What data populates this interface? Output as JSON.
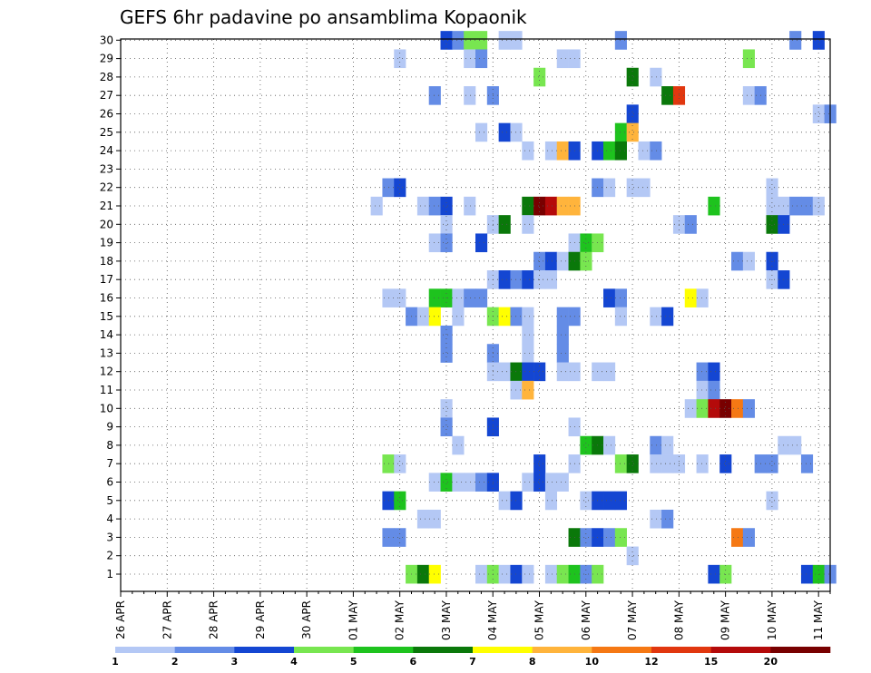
{
  "chart_data": {
    "type": "heatmap",
    "title": "GEFS 6hr padavine po ansamblima Kopaonik",
    "y_categories": [
      "1",
      "2",
      "3",
      "4",
      "5",
      "6",
      "7",
      "8",
      "9",
      "10",
      "11",
      "12",
      "13",
      "14",
      "15",
      "16",
      "17",
      "18",
      "19",
      "20",
      "21",
      "22",
      "23",
      "24",
      "25",
      "26",
      "27",
      "28",
      "29",
      "30"
    ],
    "x_tick_labels": [
      "26 APR",
      "27 APR",
      "28 APR",
      "29 APR",
      "30 APR",
      "01 MAY",
      "02 MAY",
      "03 MAY",
      "04 MAY",
      "05 MAY",
      "06 MAY",
      "07 MAY",
      "08 MAY",
      "09 MAY",
      "10 MAY",
      "11 MAY"
    ],
    "steps_per_day": 4,
    "total_steps": 61,
    "grid": true,
    "colorbar": {
      "boundaries": [
        "1",
        "2",
        "3",
        "4",
        "5",
        "6",
        "7",
        "8",
        "10",
        "12",
        "15",
        "20"
      ],
      "colors": [
        "#b4c8f5",
        "#648ce6",
        "#1446d2",
        "#78e650",
        "#1ec31e",
        "#0a780a",
        "#ffff00",
        "#ffb43c",
        "#f57814",
        "#e1370f",
        "#b40a0a",
        "#780000"
      ]
    },
    "cells": [
      {
        "m": 30,
        "t": 28,
        "c": 2
      },
      {
        "m": 30,
        "t": 29,
        "c": 1
      },
      {
        "m": 30,
        "t": 30,
        "c": 3
      },
      {
        "m": 30,
        "t": 31,
        "c": 3
      },
      {
        "m": 30,
        "t": 33,
        "c": 0
      },
      {
        "m": 30,
        "t": 34,
        "c": 0
      },
      {
        "m": 30,
        "t": 43,
        "c": 1
      },
      {
        "m": 30,
        "t": 58,
        "c": 1
      },
      {
        "m": 30,
        "t": 60,
        "c": 2
      },
      {
        "m": 29,
        "t": 24,
        "c": 0
      },
      {
        "m": 29,
        "t": 30,
        "c": 0
      },
      {
        "m": 29,
        "t": 31,
        "c": 1
      },
      {
        "m": 29,
        "t": 38,
        "c": 0
      },
      {
        "m": 29,
        "t": 39,
        "c": 0
      },
      {
        "m": 29,
        "t": 54,
        "c": 3
      },
      {
        "m": 28,
        "t": 36,
        "c": 3
      },
      {
        "m": 28,
        "t": 44,
        "c": 5
      },
      {
        "m": 28,
        "t": 46,
        "c": 0
      },
      {
        "m": 27,
        "t": 27,
        "c": 1
      },
      {
        "m": 27,
        "t": 30,
        "c": 0
      },
      {
        "m": 27,
        "t": 32,
        "c": 1
      },
      {
        "m": 27,
        "t": 47,
        "c": 5
      },
      {
        "m": 27,
        "t": 48,
        "c": 9
      },
      {
        "m": 27,
        "t": 54,
        "c": 0
      },
      {
        "m": 27,
        "t": 55,
        "c": 1
      },
      {
        "m": 26,
        "t": 44,
        "c": 2
      },
      {
        "m": 26,
        "t": 60,
        "c": 0
      },
      {
        "m": 26,
        "t": 61,
        "c": 1
      },
      {
        "m": 25,
        "t": 31,
        "c": 0
      },
      {
        "m": 25,
        "t": 33,
        "c": 2
      },
      {
        "m": 25,
        "t": 34,
        "c": 0
      },
      {
        "m": 25,
        "t": 43,
        "c": 4
      },
      {
        "m": 25,
        "t": 44,
        "c": 7
      },
      {
        "m": 24,
        "t": 35,
        "c": 0
      },
      {
        "m": 24,
        "t": 37,
        "c": 0
      },
      {
        "m": 24,
        "t": 38,
        "c": 7
      },
      {
        "m": 24,
        "t": 39,
        "c": 2
      },
      {
        "m": 24,
        "t": 41,
        "c": 2
      },
      {
        "m": 24,
        "t": 42,
        "c": 4
      },
      {
        "m": 24,
        "t": 43,
        "c": 5
      },
      {
        "m": 24,
        "t": 45,
        "c": 0
      },
      {
        "m": 24,
        "t": 46,
        "c": 1
      },
      {
        "m": 22,
        "t": 23,
        "c": 1
      },
      {
        "m": 22,
        "t": 24,
        "c": 2
      },
      {
        "m": 22,
        "t": 41,
        "c": 1
      },
      {
        "m": 22,
        "t": 42,
        "c": 0
      },
      {
        "m": 22,
        "t": 44,
        "c": 0
      },
      {
        "m": 22,
        "t": 45,
        "c": 0
      },
      {
        "m": 22,
        "t": 56,
        "c": 0
      },
      {
        "m": 21,
        "t": 22,
        "c": 0
      },
      {
        "m": 21,
        "t": 26,
        "c": 0
      },
      {
        "m": 21,
        "t": 27,
        "c": 1
      },
      {
        "m": 21,
        "t": 28,
        "c": 2
      },
      {
        "m": 21,
        "t": 30,
        "c": 0
      },
      {
        "m": 21,
        "t": 35,
        "c": 5
      },
      {
        "m": 21,
        "t": 36,
        "c": 11
      },
      {
        "m": 21,
        "t": 37,
        "c": 10
      },
      {
        "m": 21,
        "t": 38,
        "c": 7
      },
      {
        "m": 21,
        "t": 39,
        "c": 7
      },
      {
        "m": 21,
        "t": 51,
        "c": 4
      },
      {
        "m": 21,
        "t": 56,
        "c": 0
      },
      {
        "m": 21,
        "t": 57,
        "c": 0
      },
      {
        "m": 21,
        "t": 58,
        "c": 1
      },
      {
        "m": 21,
        "t": 59,
        "c": 1
      },
      {
        "m": 21,
        "t": 60,
        "c": 0
      },
      {
        "m": 20,
        "t": 28,
        "c": 0
      },
      {
        "m": 20,
        "t": 32,
        "c": 0
      },
      {
        "m": 20,
        "t": 33,
        "c": 5
      },
      {
        "m": 20,
        "t": 35,
        "c": 0
      },
      {
        "m": 20,
        "t": 48,
        "c": 0
      },
      {
        "m": 20,
        "t": 49,
        "c": 1
      },
      {
        "m": 20,
        "t": 56,
        "c": 5
      },
      {
        "m": 20,
        "t": 57,
        "c": 2
      },
      {
        "m": 19,
        "t": 27,
        "c": 0
      },
      {
        "m": 19,
        "t": 28,
        "c": 1
      },
      {
        "m": 19,
        "t": 31,
        "c": 2
      },
      {
        "m": 19,
        "t": 39,
        "c": 0
      },
      {
        "m": 19,
        "t": 40,
        "c": 4
      },
      {
        "m": 19,
        "t": 41,
        "c": 3
      },
      {
        "m": 18,
        "t": 36,
        "c": 1
      },
      {
        "m": 18,
        "t": 37,
        "c": 2
      },
      {
        "m": 18,
        "t": 38,
        "c": 0
      },
      {
        "m": 18,
        "t": 39,
        "c": 5
      },
      {
        "m": 18,
        "t": 40,
        "c": 3
      },
      {
        "m": 18,
        "t": 53,
        "c": 1
      },
      {
        "m": 18,
        "t": 54,
        "c": 0
      },
      {
        "m": 18,
        "t": 56,
        "c": 2
      },
      {
        "m": 17,
        "t": 32,
        "c": 0
      },
      {
        "m": 17,
        "t": 33,
        "c": 2
      },
      {
        "m": 17,
        "t": 34,
        "c": 1
      },
      {
        "m": 17,
        "t": 35,
        "c": 2
      },
      {
        "m": 17,
        "t": 36,
        "c": 0
      },
      {
        "m": 17,
        "t": 37,
        "c": 0
      },
      {
        "m": 17,
        "t": 56,
        "c": 0
      },
      {
        "m": 17,
        "t": 57,
        "c": 2
      },
      {
        "m": 16,
        "t": 23,
        "c": 0
      },
      {
        "m": 16,
        "t": 24,
        "c": 0
      },
      {
        "m": 16,
        "t": 27,
        "c": 4
      },
      {
        "m": 16,
        "t": 28,
        "c": 4
      },
      {
        "m": 16,
        "t": 29,
        "c": 0
      },
      {
        "m": 16,
        "t": 30,
        "c": 1
      },
      {
        "m": 16,
        "t": 31,
        "c": 1
      },
      {
        "m": 16,
        "t": 42,
        "c": 2
      },
      {
        "m": 16,
        "t": 43,
        "c": 1
      },
      {
        "m": 16,
        "t": 49,
        "c": 6
      },
      {
        "m": 16,
        "t": 50,
        "c": 0
      },
      {
        "m": 15,
        "t": 25,
        "c": 1
      },
      {
        "m": 15,
        "t": 26,
        "c": 0
      },
      {
        "m": 15,
        "t": 27,
        "c": 6
      },
      {
        "m": 15,
        "t": 29,
        "c": 0
      },
      {
        "m": 15,
        "t": 32,
        "c": 3
      },
      {
        "m": 15,
        "t": 33,
        "c": 6
      },
      {
        "m": 15,
        "t": 34,
        "c": 1
      },
      {
        "m": 15,
        "t": 35,
        "c": 0
      },
      {
        "m": 15,
        "t": 38,
        "c": 1
      },
      {
        "m": 15,
        "t": 39,
        "c": 1
      },
      {
        "m": 15,
        "t": 43,
        "c": 0
      },
      {
        "m": 15,
        "t": 46,
        "c": 0
      },
      {
        "m": 15,
        "t": 47,
        "c": 2
      },
      {
        "m": 14,
        "t": 28,
        "c": 1
      },
      {
        "m": 14,
        "t": 35,
        "c": 0
      },
      {
        "m": 14,
        "t": 38,
        "c": 1
      },
      {
        "m": 13,
        "t": 28,
        "c": 1
      },
      {
        "m": 13,
        "t": 32,
        "c": 1
      },
      {
        "m": 13,
        "t": 35,
        "c": 0
      },
      {
        "m": 13,
        "t": 38,
        "c": 1
      },
      {
        "m": 12,
        "t": 32,
        "c": 0
      },
      {
        "m": 12,
        "t": 33,
        "c": 0
      },
      {
        "m": 12,
        "t": 34,
        "c": 5
      },
      {
        "m": 12,
        "t": 35,
        "c": 2
      },
      {
        "m": 12,
        "t": 36,
        "c": 2
      },
      {
        "m": 12,
        "t": 38,
        "c": 0
      },
      {
        "m": 12,
        "t": 39,
        "c": 0
      },
      {
        "m": 12,
        "t": 41,
        "c": 0
      },
      {
        "m": 12,
        "t": 42,
        "c": 0
      },
      {
        "m": 12,
        "t": 50,
        "c": 1
      },
      {
        "m": 12,
        "t": 51,
        "c": 2
      },
      {
        "m": 11,
        "t": 34,
        "c": 0
      },
      {
        "m": 11,
        "t": 35,
        "c": 7
      },
      {
        "m": 11,
        "t": 50,
        "c": 0
      },
      {
        "m": 11,
        "t": 51,
        "c": 1
      },
      {
        "m": 10,
        "t": 28,
        "c": 0
      },
      {
        "m": 10,
        "t": 49,
        "c": 0
      },
      {
        "m": 10,
        "t": 50,
        "c": 3
      },
      {
        "m": 10,
        "t": 51,
        "c": 10
      },
      {
        "m": 10,
        "t": 52,
        "c": 11
      },
      {
        "m": 10,
        "t": 53,
        "c": 8
      },
      {
        "m": 10,
        "t": 54,
        "c": 1
      },
      {
        "m": 9,
        "t": 28,
        "c": 1
      },
      {
        "m": 9,
        "t": 32,
        "c": 2
      },
      {
        "m": 9,
        "t": 39,
        "c": 0
      },
      {
        "m": 8,
        "t": 29,
        "c": 0
      },
      {
        "m": 8,
        "t": 40,
        "c": 4
      },
      {
        "m": 8,
        "t": 41,
        "c": 5
      },
      {
        "m": 8,
        "t": 42,
        "c": 0
      },
      {
        "m": 8,
        "t": 46,
        "c": 1
      },
      {
        "m": 8,
        "t": 47,
        "c": 0
      },
      {
        "m": 8,
        "t": 57,
        "c": 0
      },
      {
        "m": 8,
        "t": 58,
        "c": 0
      },
      {
        "m": 7,
        "t": 23,
        "c": 3
      },
      {
        "m": 7,
        "t": 24,
        "c": 0
      },
      {
        "m": 7,
        "t": 36,
        "c": 2
      },
      {
        "m": 7,
        "t": 39,
        "c": 0
      },
      {
        "m": 7,
        "t": 43,
        "c": 3
      },
      {
        "m": 7,
        "t": 44,
        "c": 5
      },
      {
        "m": 7,
        "t": 46,
        "c": 0
      },
      {
        "m": 7,
        "t": 47,
        "c": 0
      },
      {
        "m": 7,
        "t": 48,
        "c": 0
      },
      {
        "m": 7,
        "t": 50,
        "c": 0
      },
      {
        "m": 7,
        "t": 52,
        "c": 2
      },
      {
        "m": 7,
        "t": 55,
        "c": 1
      },
      {
        "m": 7,
        "t": 56,
        "c": 1
      },
      {
        "m": 7,
        "t": 59,
        "c": 1
      },
      {
        "m": 6,
        "t": 27,
        "c": 0
      },
      {
        "m": 6,
        "t": 28,
        "c": 4
      },
      {
        "m": 6,
        "t": 29,
        "c": 0
      },
      {
        "m": 6,
        "t": 30,
        "c": 0
      },
      {
        "m": 6,
        "t": 31,
        "c": 1
      },
      {
        "m": 6,
        "t": 32,
        "c": 2
      },
      {
        "m": 6,
        "t": 35,
        "c": 0
      },
      {
        "m": 6,
        "t": 36,
        "c": 2
      },
      {
        "m": 6,
        "t": 37,
        "c": 0
      },
      {
        "m": 6,
        "t": 38,
        "c": 0
      },
      {
        "m": 5,
        "t": 23,
        "c": 2
      },
      {
        "m": 5,
        "t": 24,
        "c": 4
      },
      {
        "m": 5,
        "t": 33,
        "c": 0
      },
      {
        "m": 5,
        "t": 34,
        "c": 2
      },
      {
        "m": 5,
        "t": 37,
        "c": 0
      },
      {
        "m": 5,
        "t": 40,
        "c": 0
      },
      {
        "m": 5,
        "t": 41,
        "c": 2
      },
      {
        "m": 5,
        "t": 42,
        "c": 2
      },
      {
        "m": 5,
        "t": 43,
        "c": 2
      },
      {
        "m": 5,
        "t": 56,
        "c": 0
      },
      {
        "m": 4,
        "t": 26,
        "c": 0
      },
      {
        "m": 4,
        "t": 27,
        "c": 0
      },
      {
        "m": 4,
        "t": 46,
        "c": 0
      },
      {
        "m": 4,
        "t": 47,
        "c": 1
      },
      {
        "m": 3,
        "t": 23,
        "c": 1
      },
      {
        "m": 3,
        "t": 24,
        "c": 1
      },
      {
        "m": 3,
        "t": 39,
        "c": 5
      },
      {
        "m": 3,
        "t": 40,
        "c": 1
      },
      {
        "m": 3,
        "t": 41,
        "c": 2
      },
      {
        "m": 3,
        "t": 42,
        "c": 1
      },
      {
        "m": 3,
        "t": 43,
        "c": 3
      },
      {
        "m": 3,
        "t": 53,
        "c": 8
      },
      {
        "m": 3,
        "t": 54,
        "c": 1
      },
      {
        "m": 2,
        "t": 44,
        "c": 0
      },
      {
        "m": 1,
        "t": 25,
        "c": 3
      },
      {
        "m": 1,
        "t": 26,
        "c": 5
      },
      {
        "m": 1,
        "t": 27,
        "c": 6
      },
      {
        "m": 1,
        "t": 31,
        "c": 0
      },
      {
        "m": 1,
        "t": 32,
        "c": 3
      },
      {
        "m": 1,
        "t": 33,
        "c": 0
      },
      {
        "m": 1,
        "t": 34,
        "c": 2
      },
      {
        "m": 1,
        "t": 35,
        "c": 0
      },
      {
        "m": 1,
        "t": 37,
        "c": 0
      },
      {
        "m": 1,
        "t": 38,
        "c": 3
      },
      {
        "m": 1,
        "t": 39,
        "c": 4
      },
      {
        "m": 1,
        "t": 40,
        "c": 1
      },
      {
        "m": 1,
        "t": 41,
        "c": 3
      },
      {
        "m": 1,
        "t": 51,
        "c": 2
      },
      {
        "m": 1,
        "t": 52,
        "c": 3
      },
      {
        "m": 1,
        "t": 59,
        "c": 2
      },
      {
        "m": 1,
        "t": 60,
        "c": 4
      },
      {
        "m": 1,
        "t": 61,
        "c": 1
      }
    ]
  }
}
